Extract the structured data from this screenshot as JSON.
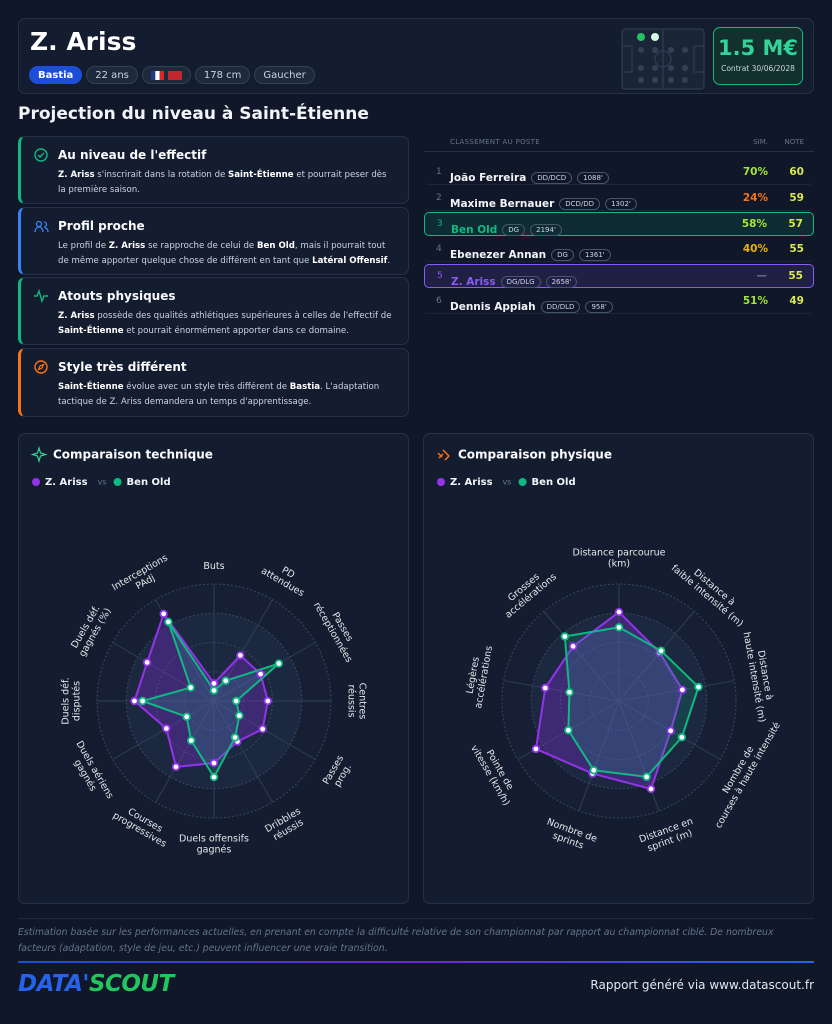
{
  "header": {
    "name": "Z. Ariss",
    "team": "Bastia",
    "tags": [
      "22 ans",
      "178 cm",
      "Gaucher"
    ],
    "price": "1.5 M€",
    "contract": "Contrat 30/06/2028"
  },
  "section_title": "Projection du niveau à Saint-Étienne",
  "cards": [
    {
      "title": "Au niveau de l'effectif",
      "color": "#10b981",
      "text": [
        {
          "text": "Z. Ariss",
          "bold": true
        },
        {
          "text": " s'inscrirait dans la rotation de ",
          "bold": false
        },
        {
          "text": "Saint-Étienne",
          "bold": true
        },
        {
          "text": " et pourrait peser dès la première saison.",
          "bold": false
        }
      ]
    },
    {
      "title": "Profil proche",
      "color": "#3b82f6",
      "text": [
        {
          "text": "Le profil de ",
          "bold": false
        },
        {
          "text": "Z. Ariss",
          "bold": true
        },
        {
          "text": " se rapproche de celui de ",
          "bold": false
        },
        {
          "text": "Ben Old",
          "bold": true
        },
        {
          "text": ", mais il pourrait tout de même apporter quelque chose de différent en tant que ",
          "bold": false
        },
        {
          "text": "Latéral Offensif",
          "bold": true
        },
        {
          "text": ".",
          "bold": false
        }
      ]
    },
    {
      "title": "Atouts physiques",
      "color": "#10b981",
      "text": [
        {
          "text": "Z. Ariss",
          "bold": true
        },
        {
          "text": " possède des qualités athlétiques supérieures à celles de l'effectif de ",
          "bold": false
        },
        {
          "text": "Saint-Étienne",
          "bold": true
        },
        {
          "text": " et pourrait énormément apporter dans ce domaine.",
          "bold": false
        }
      ]
    },
    {
      "title": "Style très différent",
      "color": "#f97316",
      "text": [
        {
          "text": "Saint-Étienne",
          "bold": true
        },
        {
          "text": " évolue avec un style très différent de ",
          "bold": false
        },
        {
          "text": "Bastia",
          "bold": true
        },
        {
          "text": ". L'adaptation tactique de Z. Ariss demandera un temps d'apprentissage.",
          "bold": false
        }
      ]
    }
  ],
  "ranking": {
    "title": "CLASSEMENT AU POSTE",
    "columns": [
      "SIM.",
      "NOTE"
    ],
    "rows": [
      {
        "rank": 1,
        "name": "João Ferreira",
        "position": "DD/DCD",
        "minutes": "1088'",
        "similarity": "70%",
        "sim_color": "#a3e635",
        "note": 60
      },
      {
        "rank": 2,
        "name": "Maxime Bernauer",
        "position": "DCD/DD",
        "minutes": "1302'",
        "similarity": "24%",
        "sim_color": "#f97316",
        "note": 59
      },
      {
        "rank": 3,
        "name": "Ben Old",
        "position": "DG",
        "minutes": "2194'",
        "similarity": "58%",
        "sim_color": "#a3e635",
        "note": 57,
        "highlight": "#10b981"
      },
      {
        "rank": 4,
        "name": "Ebenezer Annan",
        "position": "DG",
        "minutes": "1361'",
        "similarity": "40%",
        "sim_color": "#eab308",
        "note": 55
      },
      {
        "rank": 5,
        "name": "Z. Ariss",
        "position": "DG/DLG",
        "minutes": "2658'",
        "similarity": "—",
        "sim_color": "#64748b",
        "note": 55,
        "highlight": "#8b5cf6"
      },
      {
        "rank": 6,
        "name": "Dennis Appiah",
        "position": "DD/DLD",
        "minutes": "958'",
        "similarity": "51%",
        "sim_color": "#a3e635",
        "note": 49
      }
    ]
  },
  "chart_data": [
    {
      "type": "radar",
      "title": "Comparaison technique",
      "vs_label": "vs",
      "rlim": [
        0,
        100
      ],
      "rticks": [
        25,
        50,
        75,
        100
      ],
      "categories": [
        [
          "Buts"
        ],
        [
          "PD",
          "attendues"
        ],
        [
          "Passes",
          "réceptionnées"
        ],
        [
          "Centres",
          "réussis"
        ],
        [
          "Passes",
          "prog."
        ],
        [
          "Dribbles",
          "réussis"
        ],
        [
          "Duels offensifs",
          "gagnés"
        ],
        [
          "Courses",
          "progressives"
        ],
        [
          "Duels aériens",
          "gagnés"
        ],
        [
          "Duels déf.",
          "disputés"
        ],
        [
          "Duels déf.",
          "gagnés (%)"
        ],
        [
          "Interceptions",
          "PAdj"
        ]
      ],
      "series": [
        {
          "name": "Z. Ariss",
          "color": "#9333ea",
          "values": [
            15,
            45,
            46,
            46,
            48,
            40,
            53,
            65,
            47,
            68,
            66,
            86
          ]
        },
        {
          "name": "Ben Old",
          "color": "#10b981",
          "values": [
            9,
            20,
            64,
            19,
            25,
            36,
            65,
            39,
            27,
            61,
            23,
            78
          ]
        }
      ]
    },
    {
      "type": "radar",
      "title": "Comparaison physique",
      "vs_label": "vs",
      "rlim": [
        0,
        100
      ],
      "rticks": [
        25,
        50,
        75,
        100
      ],
      "categories": [
        [
          "Distance parcourue",
          "(km)"
        ],
        [
          "Distance à",
          "faible intensité (m)"
        ],
        [
          "Distance à",
          "haute intensité (m)"
        ],
        [
          "Nombre de",
          "courses à haute intensité"
        ],
        [
          "Distance en",
          "sprint (m)"
        ],
        [
          "Nombre de",
          "sprints"
        ],
        [
          "Pointe de",
          "vitesse (km/h)"
        ],
        [
          "Légères",
          "accélérations"
        ],
        [
          "Grosses",
          "accélérations"
        ]
      ],
      "series": [
        {
          "name": "Z. Ariss",
          "color": "#9333ea",
          "values": [
            76,
            54,
            55,
            51,
            80,
            66,
            82,
            64,
            61
          ]
        },
        {
          "name": "Ben Old",
          "color": "#10b981",
          "values": [
            63,
            56,
            69,
            62,
            69,
            63,
            50,
            43,
            72
          ]
        }
      ]
    }
  ],
  "footer": {
    "disclaimer": "Estimation basée sur les performances actuelles, en prenant en compte la difficulté relative de son championnat par rapport au championnat ciblé. De nombreux facteurs (adaptation, style de jeu, etc.) peuvent influencer une vraie transition.",
    "logo": [
      "DATA'",
      "SCOUT"
    ],
    "credit": "Rapport généré via www.datascout.fr"
  }
}
